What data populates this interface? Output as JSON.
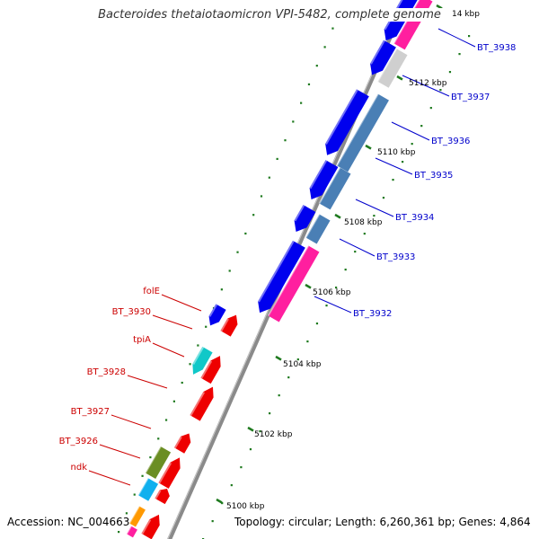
{
  "title": "Bacteroides thetaiotaomicron VPI-5482, complete genome",
  "footer": {
    "accession": "Accession: NC_004663",
    "topology": "Topology: circular; Length: 6,260,361 bp; Genes: 4,864"
  },
  "ruler": [
    {
      "label": "5100 kbp"
    },
    {
      "label": "5102 kbp"
    },
    {
      "label": "5104 kbp"
    },
    {
      "label": "5106 kbp"
    },
    {
      "label": "5108 kbp"
    },
    {
      "label": "5110 kbp"
    },
    {
      "label": "5112 kbp"
    },
    {
      "label": "14 kbp"
    }
  ],
  "gene_labels_left": [
    {
      "label": "folE",
      "color": "#cc0000"
    },
    {
      "label": "BT_3930",
      "color": "#cc0000"
    },
    {
      "label": "tpiA",
      "color": "#cc0000"
    },
    {
      "label": "BT_3928",
      "color": "#cc0000"
    },
    {
      "label": "BT_3927",
      "color": "#cc0000"
    },
    {
      "label": "BT_3926",
      "color": "#cc0000"
    },
    {
      "label": "ndk",
      "color": "#cc0000"
    }
  ],
  "gene_labels_right": [
    {
      "label": "BT_3938",
      "color": "#0000cc"
    },
    {
      "label": "BT_3937",
      "color": "#0000cc"
    },
    {
      "label": "BT_3936",
      "color": "#0000cc"
    },
    {
      "label": "BT_3935",
      "color": "#0000cc"
    },
    {
      "label": "BT_3934",
      "color": "#0000cc"
    },
    {
      "label": "BT_3933",
      "color": "#0000cc"
    },
    {
      "label": "BT_3932",
      "color": "#0000cc"
    }
  ],
  "colors": {
    "backbone": "#8a8a8a",
    "ruler_tick": "#1f7a1f",
    "blue": "#0000ee",
    "steelblue": "#4a7fb5",
    "magenta": "#ff1f9f",
    "grey": "#cfcfcf",
    "red": "#ee0000",
    "cyan": "#10c8c8",
    "skyblue": "#10b0ee",
    "olive": "#6b8e23",
    "orange": "#ff9900"
  }
}
